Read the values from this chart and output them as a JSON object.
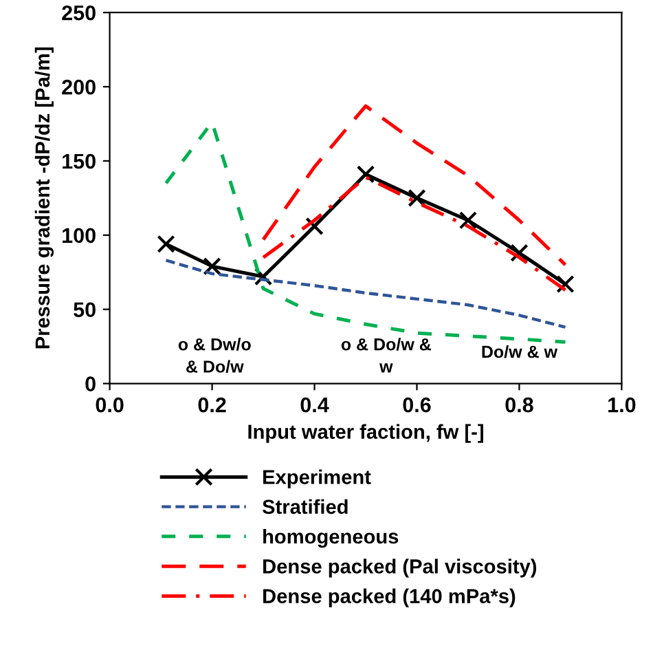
{
  "chart_data": {
    "type": "line",
    "xlabel": "Input water faction, fw [-]",
    "ylabel": "Pressure gradient -dP/dz [Pa/m]",
    "xlim": [
      0.0,
      1.0
    ],
    "xticks": [
      {
        "value": 0.0,
        "label": "0.0"
      },
      {
        "value": 0.2,
        "label": "0.2"
      },
      {
        "value": 0.4,
        "label": "0.4"
      },
      {
        "value": 0.6,
        "label": "0.6"
      },
      {
        "value": 0.8,
        "label": "0.8"
      },
      {
        "value": 1.0,
        "label": "1.0"
      }
    ],
    "ylim": [
      0,
      250
    ],
    "yticks": [
      0,
      50,
      100,
      150,
      200,
      250
    ],
    "grid": false,
    "legend": "bottom",
    "annotations": [
      "o & Dw/o\n& Do/w",
      "o & Do/w &\nw",
      "Do/w & w"
    ],
    "series": [
      {
        "name": "Experiment",
        "color": "#000000",
        "marker": "cross",
        "line_style": "solid",
        "x": [
          0.11,
          0.2,
          0.3,
          0.4,
          0.5,
          0.6,
          0.7,
          0.8,
          0.89
        ],
        "values": [
          94,
          79,
          72,
          106,
          141,
          125,
          110,
          88,
          67
        ]
      },
      {
        "name": "Stratified",
        "color": "#2f5597",
        "marker": "none",
        "line_style": "dotted",
        "x": [
          0.11,
          0.2,
          0.3,
          0.4,
          0.5,
          0.6,
          0.7,
          0.8,
          0.89
        ],
        "values": [
          83,
          74,
          70,
          66,
          61,
          57,
          53,
          46,
          38
        ]
      },
      {
        "name": "homogeneous",
        "color": "#00b050",
        "marker": "none",
        "line_style": "dashed",
        "x": [
          0.11,
          0.2,
          0.3,
          0.4,
          0.5,
          0.6,
          0.7,
          0.8,
          0.89
        ],
        "values": [
          135,
          176,
          64,
          47,
          40,
          34,
          32,
          30,
          28
        ]
      },
      {
        "name": "Dense packed (Pal viscosity)",
        "color": "#ff0000",
        "marker": "none",
        "line_style": "longdash",
        "x": [
          0.3,
          0.4,
          0.5,
          0.6,
          0.7,
          0.8,
          0.89
        ],
        "values": [
          97,
          146,
          187,
          162,
          140,
          110,
          80
        ]
      },
      {
        "name": "Dense packed (140 mPa*s)",
        "color": "#ff0000",
        "marker": "none",
        "line_style": "dashdot",
        "x": [
          0.3,
          0.4,
          0.5,
          0.6,
          0.7,
          0.8,
          0.89
        ],
        "values": [
          85,
          110,
          139,
          122,
          106,
          85,
          63
        ]
      }
    ]
  }
}
